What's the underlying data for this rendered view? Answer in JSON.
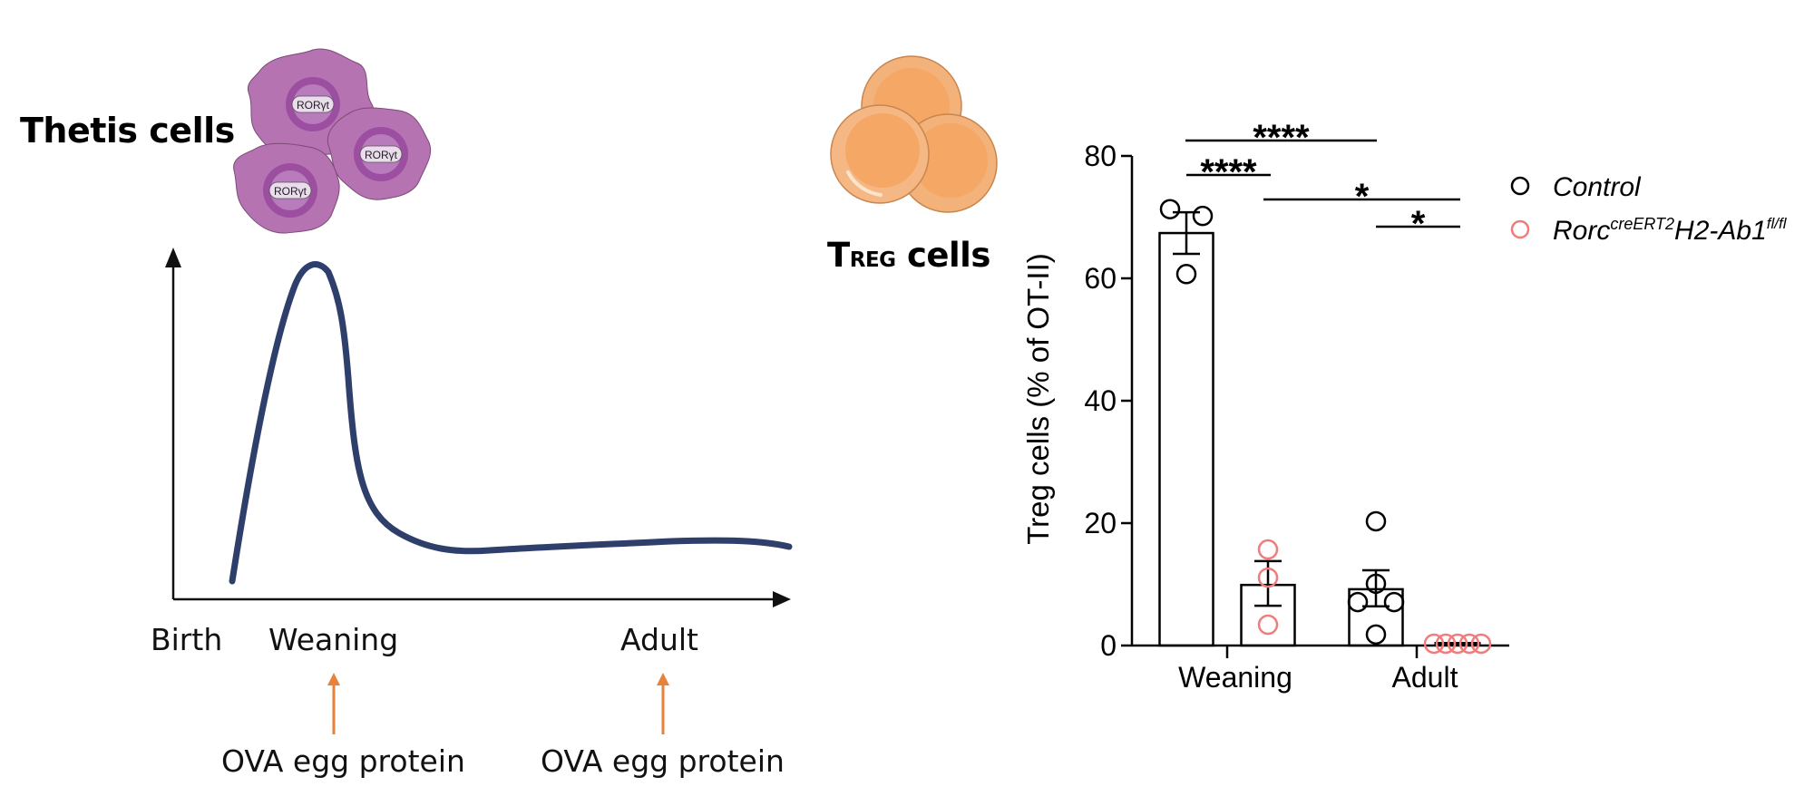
{
  "left_panel": {
    "title": "Thetis cells",
    "cell_label": "RORγt",
    "cell_illustration_count": 3,
    "timeline": {
      "x_labels": [
        "Birth",
        "Weaning",
        "Adult"
      ],
      "annotations": [
        {
          "text": "OVA egg protein",
          "at": "Weaning"
        },
        {
          "text": "OVA egg protein",
          "at": "Adult"
        }
      ],
      "curve_color": "#2e3f6b",
      "arrow_color": "#e8813a"
    }
  },
  "middle_panel": {
    "title_main": "T",
    "title_sub": "REG",
    "title_rest": " cells",
    "cell_color": "#f5b47a"
  },
  "chart_data": {
    "type": "bar",
    "title": "",
    "xlabel": "",
    "ylabel": "Treg cells (% of OT-II)",
    "ylim": [
      0,
      80
    ],
    "yticks": [
      0,
      20,
      40,
      60,
      80
    ],
    "categories": [
      "Weaning",
      "Adult"
    ],
    "legend_position": "top-right",
    "series": [
      {
        "name": "Control",
        "italic": true,
        "color": "#000000",
        "values": [
          67.4,
          9.2
        ],
        "sem": [
          [
            64.0,
            70.8
          ],
          [
            6.4,
            12.3
          ]
        ],
        "points": [
          [
            71.3,
            70.2,
            60.7
          ],
          [
            20.3,
            10.1,
            7.1,
            7.1,
            1.8
          ]
        ]
      },
      {
        "name": "Rorc",
        "name_sup1": "creERT2",
        "name_mid": "H2-Ab1",
        "name_sup2": "fl/fl",
        "italic": true,
        "color": "#f07c7c",
        "values": [
          9.9,
          0.3
        ],
        "sem": [
          [
            6.5,
            13.8
          ],
          [
            0.2,
            0.4
          ]
        ],
        "points": [
          [
            15.7,
            11.1,
            3.4
          ],
          [
            0.3,
            0.3,
            0.3,
            0.3,
            0.3
          ]
        ]
      }
    ],
    "significance": [
      {
        "from": "Weaning:Control",
        "to": "Adult:Control",
        "label": "****"
      },
      {
        "from": "Weaning:Control",
        "to": "Weaning:Rorc",
        "label": "****"
      },
      {
        "from": "Weaning:Rorc",
        "to": "Adult:Rorc",
        "label": "*"
      },
      {
        "from": "Adult:Control",
        "to": "Adult:Rorc",
        "label": "*"
      }
    ]
  }
}
